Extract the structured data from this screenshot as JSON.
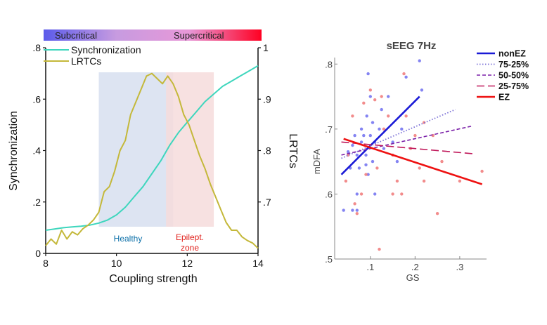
{
  "chart_data": [
    {
      "type": "line",
      "title": "",
      "xlabel": "Coupling strength",
      "ylabel": "Synchronization",
      "y2label": "LRTCs",
      "xlim": [
        8,
        14
      ],
      "ylim": [
        0,
        0.8
      ],
      "y2lim": [
        0.6,
        1.0
      ],
      "x_ticks": [
        {
          "v": 8,
          "label": "8"
        },
        {
          "v": 10,
          "label": "10"
        },
        {
          "v": 12,
          "label": "12"
        },
        {
          "v": 14,
          "label": "14"
        }
      ],
      "y_ticks": [
        {
          "v": 0,
          "label": "0"
        },
        {
          "v": 0.2,
          "label": ".2"
        },
        {
          "v": 0.4,
          "label": ".4"
        },
        {
          "v": 0.6,
          "label": ".6"
        },
        {
          "v": 0.8,
          "label": ".8"
        }
      ],
      "y2_ticks": [
        {
          "v": 0.7,
          "label": ".7"
        },
        {
          "v": 0.8,
          "label": ".8"
        },
        {
          "v": 0.9,
          "label": ".9"
        },
        {
          "v": 1.0,
          "label": "1"
        }
      ],
      "gradient_bar": {
        "left_label": "Subcritical",
        "right_label": "Supercritical",
        "colors": [
          "#5b5bea",
          "#c79be0",
          "#e898d8",
          "#ff0022"
        ]
      },
      "regions": [
        {
          "name": "Healthy",
          "x_range": [
            9.5,
            11.6
          ],
          "color": "#dde4f2",
          "label_color": "#0b6fa8"
        },
        {
          "name": "Epilept. zone",
          "label_lines": [
            "Epilept.",
            "zone"
          ],
          "x_range": [
            11.4,
            12.75
          ],
          "color": "#f6dcdc",
          "label_color": "#e0201b"
        }
      ],
      "legend_position": "top-left",
      "series": [
        {
          "name": "Synchronization",
          "axis": "left",
          "color": "#3ed6bd",
          "x": [
            8,
            8.25,
            8.5,
            8.75,
            9,
            9.25,
            9.5,
            9.75,
            10,
            10.25,
            10.5,
            10.75,
            11,
            11.25,
            11.5,
            11.75,
            12,
            12.25,
            12.5,
            12.75,
            13,
            13.25,
            13.5,
            13.75,
            14
          ],
          "y": [
            0.09,
            0.095,
            0.1,
            0.103,
            0.106,
            0.11,
            0.118,
            0.13,
            0.15,
            0.18,
            0.22,
            0.26,
            0.31,
            0.36,
            0.42,
            0.47,
            0.51,
            0.55,
            0.59,
            0.62,
            0.65,
            0.67,
            0.69,
            0.71,
            0.73
          ]
        },
        {
          "name": "LRTCs",
          "axis": "right",
          "color": "#c4b83a",
          "x": [
            8,
            8.15,
            8.3,
            8.45,
            8.6,
            8.75,
            8.9,
            9.05,
            9.2,
            9.35,
            9.5,
            9.65,
            9.8,
            9.95,
            10.1,
            10.25,
            10.4,
            10.55,
            10.7,
            10.85,
            11,
            11.15,
            11.3,
            11.45,
            11.6,
            11.75,
            11.9,
            12.05,
            12.2,
            12.35,
            12.5,
            12.65,
            12.8,
            12.95,
            13.1,
            13.25,
            13.4,
            13.55,
            13.7,
            13.85,
            14
          ],
          "y": [
            0.615,
            0.628,
            0.618,
            0.645,
            0.628,
            0.642,
            0.636,
            0.648,
            0.655,
            0.665,
            0.68,
            0.72,
            0.73,
            0.76,
            0.8,
            0.82,
            0.87,
            0.895,
            0.92,
            0.945,
            0.95,
            0.94,
            0.93,
            0.945,
            0.93,
            0.905,
            0.87,
            0.85,
            0.82,
            0.79,
            0.765,
            0.735,
            0.71,
            0.685,
            0.66,
            0.645,
            0.645,
            0.632,
            0.625,
            0.62,
            0.61
          ]
        }
      ]
    },
    {
      "type": "scatter",
      "title": "sEEG 7Hz",
      "xlabel": "GS",
      "ylabel": "mDFA",
      "xlim": [
        0.02,
        0.36
      ],
      "ylim": [
        0.5,
        0.81
      ],
      "x_ticks": [
        {
          "v": 0.1,
          "label": ".1"
        },
        {
          "v": 0.2,
          "label": ".2"
        },
        {
          "v": 0.3,
          "label": ".3"
        }
      ],
      "y_ticks": [
        {
          "v": 0.5,
          "label": ".5"
        },
        {
          "v": 0.6,
          "label": ".6"
        },
        {
          "v": 0.7,
          "label": ".7"
        },
        {
          "v": 0.8,
          "label": ".8"
        }
      ],
      "legend_position": "top-right",
      "series": [
        {
          "name": "nonEZ",
          "kind": "points",
          "color": "#6f6ff0",
          "points": [
            [
              0.04,
              0.575
            ],
            [
              0.05,
              0.665
            ],
            [
              0.055,
              0.64
            ],
            [
              0.06,
              0.675
            ],
            [
              0.06,
              0.575
            ],
            [
              0.065,
              0.69
            ],
            [
              0.07,
              0.66
            ],
            [
              0.07,
              0.6
            ],
            [
              0.07,
              0.575
            ],
            [
              0.075,
              0.64
            ],
            [
              0.08,
              0.7
            ],
            [
              0.08,
              0.68
            ],
            [
              0.085,
              0.69
            ],
            [
              0.09,
              0.66
            ],
            [
              0.09,
              0.645
            ],
            [
              0.092,
              0.72
            ],
            [
              0.095,
              0.785
            ],
            [
              0.095,
              0.63
            ],
            [
              0.1,
              0.75
            ],
            [
              0.1,
              0.69
            ],
            [
              0.105,
              0.65
            ],
            [
              0.105,
              0.71
            ],
            [
              0.11,
              0.68
            ],
            [
              0.11,
              0.6
            ],
            [
              0.12,
              0.7
            ],
            [
              0.125,
              0.73
            ],
            [
              0.13,
              0.67
            ],
            [
              0.14,
              0.75
            ],
            [
              0.15,
              0.68
            ],
            [
              0.16,
              0.65
            ],
            [
              0.17,
              0.7
            ],
            [
              0.18,
              0.78
            ],
            [
              0.21,
              0.805
            ],
            [
              0.215,
              0.76
            ]
          ]
        },
        {
          "name": "EZ",
          "kind": "points",
          "color": "#f07878",
          "points": [
            [
              0.045,
              0.62
            ],
            [
              0.05,
              0.66
            ],
            [
              0.06,
              0.72
            ],
            [
              0.065,
              0.585
            ],
            [
              0.07,
              0.57
            ],
            [
              0.08,
              0.6
            ],
            [
              0.085,
              0.74
            ],
            [
              0.09,
              0.63
            ],
            [
              0.1,
              0.76
            ],
            [
              0.11,
              0.745
            ],
            [
              0.115,
              0.64
            ],
            [
              0.12,
              0.515
            ],
            [
              0.125,
              0.75
            ],
            [
              0.13,
              0.7
            ],
            [
              0.14,
              0.72
            ],
            [
              0.15,
              0.66
            ],
            [
              0.15,
              0.6
            ],
            [
              0.16,
              0.62
            ],
            [
              0.17,
              0.6
            ],
            [
              0.175,
              0.785
            ],
            [
              0.18,
              0.72
            ],
            [
              0.19,
              0.67
            ],
            [
              0.2,
              0.69
            ],
            [
              0.21,
              0.64
            ],
            [
              0.22,
              0.62
            ],
            [
              0.22,
              0.71
            ],
            [
              0.24,
              0.69
            ],
            [
              0.25,
              0.57
            ],
            [
              0.26,
              0.65
            ],
            [
              0.3,
              0.62
            ],
            [
              0.35,
              0.635
            ]
          ]
        },
        {
          "name": "nonEZ",
          "kind": "line",
          "color": "#1a1ad6",
          "dash": "",
          "width": 2.6,
          "points": [
            [
              0.035,
              0.63
            ],
            [
              0.21,
              0.75
            ]
          ]
        },
        {
          "name": "75-25%",
          "kind": "line",
          "color": "#7a6fd6",
          "dash": "1.5,2.5",
          "width": 1.8,
          "points": [
            [
              0.035,
              0.655
            ],
            [
              0.29,
              0.73
            ]
          ]
        },
        {
          "name": "50-50%",
          "kind": "line",
          "color": "#7a1fa8",
          "dash": "5,3",
          "width": 1.6,
          "points": [
            [
              0.035,
              0.66
            ],
            [
              0.33,
              0.705
            ]
          ]
        },
        {
          "name": "25-75%",
          "kind": "line",
          "color": "#c0185a",
          "dash": "11,5",
          "width": 1.6,
          "points": [
            [
              0.035,
              0.68
            ],
            [
              0.33,
              0.662
            ]
          ]
        },
        {
          "name": "EZ",
          "kind": "line",
          "color": "#ee1111",
          "dash": "",
          "width": 2.6,
          "points": [
            [
              0.04,
              0.685
            ],
            [
              0.35,
              0.615
            ]
          ]
        }
      ]
    }
  ]
}
